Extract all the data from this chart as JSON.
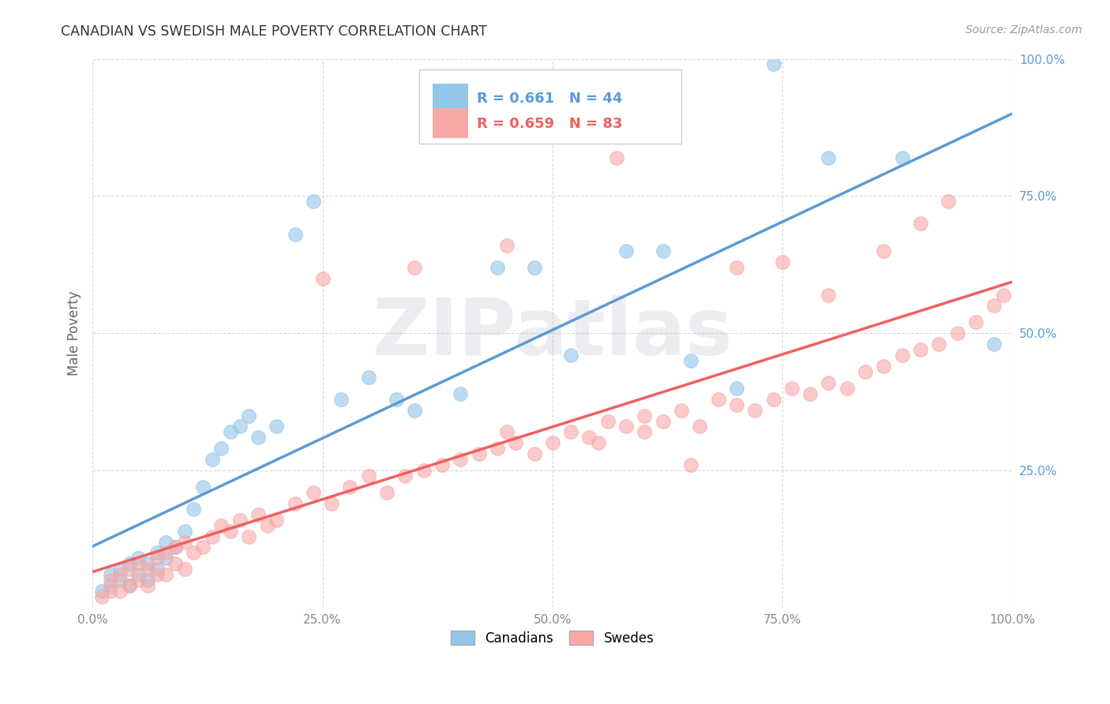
{
  "title": "CANADIAN VS SWEDISH MALE POVERTY CORRELATION CHART",
  "source": "Source: ZipAtlas.com",
  "ylabel": "Male Poverty",
  "xlim": [
    0,
    1
  ],
  "ylim": [
    0,
    1
  ],
  "xticks": [
    0.0,
    0.25,
    0.5,
    0.75,
    1.0
  ],
  "xtick_labels": [
    "0.0%",
    "25.0%",
    "50.0%",
    "75.0%",
    "100.0%"
  ],
  "yticks": [
    0.25,
    0.5,
    0.75,
    1.0
  ],
  "ytick_labels": [
    "25.0%",
    "50.0%",
    "75.0%",
    "100.0%"
  ],
  "canadian_color": "#93c6e8",
  "swedish_color": "#f9a8a8",
  "canadian_line_color": "#5b9bd5",
  "swedish_line_color": "#f06060",
  "canadian_R": 0.661,
  "canadian_N": 44,
  "swedish_R": 0.659,
  "swedish_N": 83,
  "legend_label_canadian": "Canadians",
  "legend_label_swedish": "Swedes",
  "watermark_text": "ZIPatlas",
  "background_color": "#ffffff",
  "grid_color": "#d8d8d8",
  "ytick_color": "#5b9bd5",
  "xtick_color": "#888888",
  "title_color": "#333333",
  "source_color": "#999999",
  "ylabel_color": "#666666",
  "canadians_x": [
    0.01,
    0.02,
    0.02,
    0.03,
    0.03,
    0.04,
    0.04,
    0.05,
    0.05,
    0.06,
    0.06,
    0.07,
    0.07,
    0.08,
    0.08,
    0.09,
    0.1,
    0.11,
    0.12,
    0.13,
    0.14,
    0.15,
    0.16,
    0.17,
    0.18,
    0.2,
    0.22,
    0.24,
    0.27,
    0.3,
    0.33,
    0.35,
    0.4,
    0.44,
    0.48,
    0.52,
    0.58,
    0.62,
    0.65,
    0.7,
    0.74,
    0.8,
    0.88,
    0.98
  ],
  "canadians_y": [
    0.03,
    0.04,
    0.06,
    0.05,
    0.07,
    0.04,
    0.08,
    0.06,
    0.09,
    0.05,
    0.08,
    0.07,
    0.1,
    0.09,
    0.12,
    0.11,
    0.14,
    0.18,
    0.22,
    0.27,
    0.29,
    0.32,
    0.33,
    0.35,
    0.31,
    0.33,
    0.68,
    0.74,
    0.38,
    0.42,
    0.38,
    0.36,
    0.39,
    0.62,
    0.62,
    0.46,
    0.65,
    0.65,
    0.45,
    0.4,
    0.99,
    0.82,
    0.82,
    0.48
  ],
  "swedes_x": [
    0.01,
    0.02,
    0.02,
    0.03,
    0.03,
    0.04,
    0.04,
    0.05,
    0.05,
    0.06,
    0.06,
    0.07,
    0.07,
    0.08,
    0.08,
    0.09,
    0.09,
    0.1,
    0.1,
    0.11,
    0.12,
    0.13,
    0.14,
    0.15,
    0.16,
    0.17,
    0.18,
    0.19,
    0.2,
    0.22,
    0.24,
    0.26,
    0.28,
    0.3,
    0.32,
    0.34,
    0.36,
    0.38,
    0.4,
    0.42,
    0.44,
    0.46,
    0.48,
    0.5,
    0.52,
    0.54,
    0.56,
    0.58,
    0.6,
    0.62,
    0.64,
    0.66,
    0.68,
    0.7,
    0.72,
    0.74,
    0.76,
    0.78,
    0.8,
    0.82,
    0.84,
    0.86,
    0.88,
    0.9,
    0.92,
    0.94,
    0.96,
    0.98,
    0.99,
    0.25,
    0.35,
    0.45,
    0.55,
    0.57,
    0.65,
    0.7,
    0.75,
    0.8,
    0.86,
    0.9,
    0.93,
    0.45,
    0.6
  ],
  "swedes_y": [
    0.02,
    0.03,
    0.05,
    0.03,
    0.06,
    0.04,
    0.07,
    0.05,
    0.08,
    0.04,
    0.07,
    0.06,
    0.09,
    0.06,
    0.1,
    0.08,
    0.11,
    0.07,
    0.12,
    0.1,
    0.11,
    0.13,
    0.15,
    0.14,
    0.16,
    0.13,
    0.17,
    0.15,
    0.16,
    0.19,
    0.21,
    0.19,
    0.22,
    0.24,
    0.21,
    0.24,
    0.25,
    0.26,
    0.27,
    0.28,
    0.29,
    0.3,
    0.28,
    0.3,
    0.32,
    0.31,
    0.34,
    0.33,
    0.32,
    0.34,
    0.36,
    0.33,
    0.38,
    0.37,
    0.36,
    0.38,
    0.4,
    0.39,
    0.41,
    0.4,
    0.43,
    0.44,
    0.46,
    0.47,
    0.48,
    0.5,
    0.52,
    0.55,
    0.57,
    0.6,
    0.62,
    0.66,
    0.3,
    0.82,
    0.26,
    0.62,
    0.63,
    0.57,
    0.65,
    0.7,
    0.74,
    0.32,
    0.35
  ]
}
